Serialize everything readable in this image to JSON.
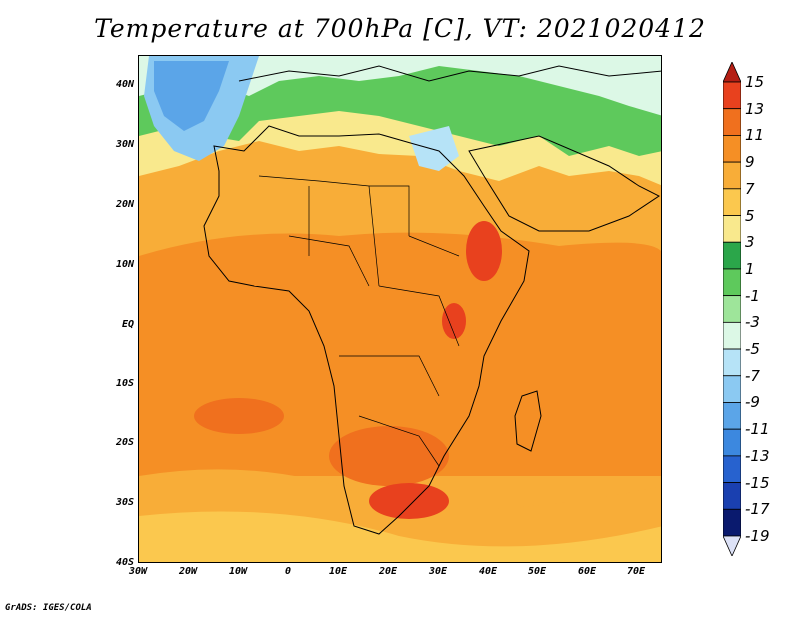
{
  "title": "Temperature at 700hPa [C], VT: 2021020412",
  "credit": "GrADS: IGES/COLA",
  "map": {
    "lat_labels": [
      "40N",
      "30N",
      "20N",
      "10N",
      "EQ",
      "10S",
      "20S",
      "30S",
      "40S"
    ],
    "lon_labels": [
      "30W",
      "20W",
      "10W",
      "0",
      "10E",
      "20E",
      "30E",
      "40E",
      "50E",
      "60E",
      "70E"
    ]
  },
  "colorbar": {
    "labels": [
      "15",
      "13",
      "11",
      "9",
      "7",
      "5",
      "3",
      "1",
      "-1",
      "-3",
      "-5",
      "-7",
      "-9",
      "-11",
      "-13",
      "-15",
      "-17",
      "-19"
    ],
    "colors": [
      "#b41e14",
      "#e8411e",
      "#f0701e",
      "#f58f25",
      "#f8ad38",
      "#fbc84e",
      "#f9e98d",
      "#2ba64a",
      "#5ec95c",
      "#9ee59a",
      "#dcf8e6",
      "#b6e3f7",
      "#8bc9f2",
      "#5ba5e8",
      "#3c88df",
      "#2762cf",
      "#1a40b0",
      "#0a1a6e",
      "#dde2f7"
    ]
  }
}
